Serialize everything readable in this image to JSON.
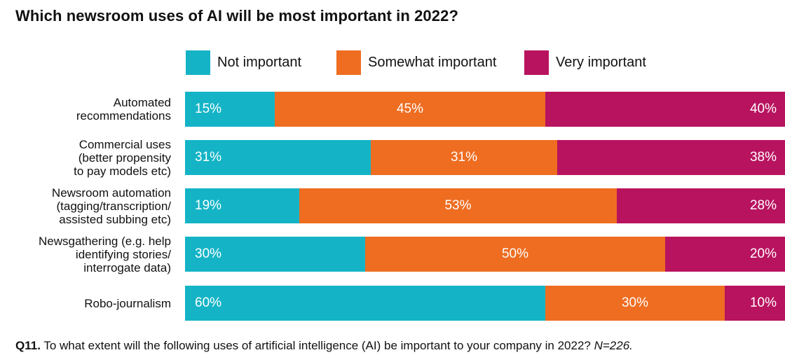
{
  "chart_data": {
    "type": "bar",
    "orientation": "horizontal",
    "stacked": true,
    "title": "Which newsroom uses of AI will be most important in 2022?",
    "categories": [
      [
        "Automated",
        "recommendations"
      ],
      [
        "Commercial uses",
        "(better propensity",
        "to pay models etc)"
      ],
      [
        "Newsroom automation",
        "(tagging/transcription/",
        "assisted subbing  etc)"
      ],
      [
        "Newsgathering (e.g. help",
        "identifying stories/",
        "interrogate data)"
      ],
      [
        "Robo-journalism"
      ]
    ],
    "series": [
      {
        "name": "Not important",
        "color": "#14b4c6",
        "values": [
          15,
          31,
          19,
          30,
          60
        ]
      },
      {
        "name": "Somewhat important",
        "color": "#ee6d21",
        "values": [
          45,
          31,
          53,
          50,
          30
        ]
      },
      {
        "name": "Very important",
        "color": "#b8135f",
        "values": [
          40,
          38,
          28,
          20,
          10
        ]
      }
    ],
    "value_suffix": "%",
    "xlim": [
      0,
      100
    ],
    "legend_position": "top"
  },
  "footnote": {
    "question_label": "Q11.",
    "question_text": " To what extent will the following uses of artificial intelligence (AI) be important to your company in 2022? ",
    "sample": "N=226."
  }
}
